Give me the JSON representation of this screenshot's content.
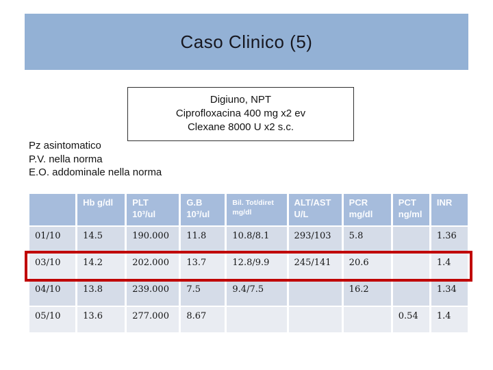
{
  "slide": {
    "title": "Caso Clinico (5)",
    "therapy_box": {
      "lines": [
        "Digiuno, NPT",
        "Ciprofloxacina 400 mg x2 ev",
        "Clexane 8000 U x2 s.c."
      ]
    },
    "patient_notes": [
      "Pz asintomatico",
      "P.V. nella norma",
      "E.O. addominale nella norma"
    ]
  },
  "lab_table": {
    "columns": [
      {
        "lines": [
          ""
        ],
        "small": false
      },
      {
        "lines": [
          "Hb g/dl"
        ],
        "small": false
      },
      {
        "lines": [
          "PLT",
          "10³/ul"
        ],
        "small": false
      },
      {
        "lines": [
          "G.B",
          "10³/ul"
        ],
        "small": false
      },
      {
        "lines": [
          "Bil. Tot/diret",
          "mg/dl"
        ],
        "small": true
      },
      {
        "lines": [
          "ALT/AST",
          "U/L"
        ],
        "small": false
      },
      {
        "lines": [
          "PCR",
          "mg/dl"
        ],
        "small": false
      },
      {
        "lines": [
          "PCT",
          "ng/ml"
        ],
        "small": false
      },
      {
        "lines": [
          "INR"
        ],
        "small": false
      }
    ],
    "rows": [
      {
        "cells": [
          "01/10",
          "14.5",
          "190.000",
          "11.8",
          "10.8/8.1",
          "293/103",
          "5.8",
          "",
          "1.36"
        ],
        "highlighted": false
      },
      {
        "cells": [
          "03/10",
          "14.2",
          "202.000",
          "13.7",
          "12.8/9.9",
          "245/141",
          "20.6",
          "",
          "1.4"
        ],
        "highlighted": true
      },
      {
        "cells": [
          "04/10",
          "13.8",
          "239.000",
          "7.5",
          "9.4/7.5",
          "",
          "16.2",
          "",
          "1.34"
        ],
        "highlighted": false
      },
      {
        "cells": [
          "05/10",
          "13.6",
          "277.000",
          "8.67",
          "",
          "",
          "",
          "0.54",
          "1.4"
        ],
        "highlighted": false
      }
    ]
  },
  "colors": {
    "title_bar_bg": "#93b1d5",
    "table_header_bg": "#a6bcdc",
    "row_band_dark": "#d5dce8",
    "row_band_light": "#e9ecf2",
    "highlight_border": "#c00000"
  }
}
